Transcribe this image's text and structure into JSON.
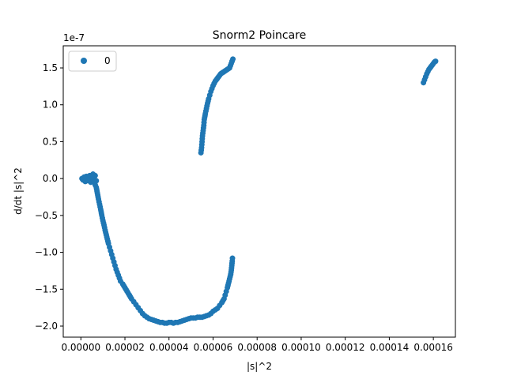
{
  "chart_data": {
    "type": "scatter",
    "title": "Snorm2 Poincare",
    "xlabel": "|s|^2",
    "ylabel": "d/dt |s|^2",
    "y_offset_text": "1e-7",
    "y_scale": 1e-07,
    "xlim": [
      -8e-06,
      0.00017
    ],
    "ylim": [
      -2.15,
      1.8
    ],
    "x_ticks": [
      0.0,
      2e-05,
      4e-05,
      6e-05,
      8e-05,
      0.0001,
      0.00012,
      0.00014,
      0.00016
    ],
    "x_tick_labels": [
      "0.00000",
      "0.00002",
      "0.00004",
      "0.00006",
      "0.00008",
      "0.00010",
      "0.00012",
      "0.00014",
      "0.00016"
    ],
    "y_ticks": [
      -2.0,
      -1.5,
      -1.0,
      -0.5,
      0.0,
      0.5,
      1.0,
      1.5
    ],
    "y_tick_labels": [
      "−2.0",
      "−1.5",
      "−1.0",
      "−0.5",
      "0.0",
      "0.5",
      "1.0",
      "1.5"
    ],
    "grid": false,
    "legend": {
      "placement": "top-left",
      "entries": [
        "0"
      ]
    },
    "color": "#1f77b4",
    "series": [
      {
        "name": "0",
        "cluster_origin": [
          [
            5e-07,
            0.0
          ],
          [
            1e-06,
            -0.02
          ],
          [
            1.5e-06,
            0.02
          ],
          [
            2e-06,
            -0.04
          ],
          [
            2.5e-06,
            0.03
          ],
          [
            3e-06,
            0.0
          ],
          [
            3.5e-06,
            -0.03
          ],
          [
            4e-06,
            0.04
          ],
          [
            4.5e-06,
            0.01
          ],
          [
            5e-06,
            -0.02
          ],
          [
            5.5e-06,
            0.03
          ],
          [
            6e-06,
            0.0
          ],
          [
            6.5e-06,
            0.04
          ],
          [
            7e-06,
            -0.03
          ],
          [
            4.5e-06,
            -0.05
          ],
          [
            5.5e-06,
            0.06
          ],
          [
            5e-06,
            0.02
          ],
          [
            6e-06,
            -0.05
          ]
        ],
        "lower_arc": [
          [
            6e-06,
            -0.05
          ],
          [
            7e-06,
            -0.12
          ],
          [
            7.5e-06,
            -0.2
          ],
          [
            8e-06,
            -0.28
          ],
          [
            8.5e-06,
            -0.35
          ],
          [
            9e-06,
            -0.42
          ],
          [
            9.5e-06,
            -0.5
          ],
          [
            1e-05,
            -0.57
          ],
          [
            1.05e-05,
            -0.63
          ],
          [
            1.1e-05,
            -0.7
          ],
          [
            1.15e-05,
            -0.76
          ],
          [
            1.2e-05,
            -0.82
          ],
          [
            1.25e-05,
            -0.88
          ],
          [
            1.3e-05,
            -0.93
          ],
          [
            1.35e-05,
            -0.98
          ],
          [
            1.4e-05,
            -1.03
          ],
          [
            1.45e-05,
            -1.08
          ],
          [
            1.5e-05,
            -1.13
          ],
          [
            1.55e-05,
            -1.18
          ],
          [
            1.6e-05,
            -1.23
          ],
          [
            1.65e-05,
            -1.27
          ],
          [
            1.7e-05,
            -1.31
          ],
          [
            1.75e-05,
            -1.35
          ],
          [
            1.8e-05,
            -1.39
          ],
          [
            1.9e-05,
            -1.43
          ],
          [
            2e-05,
            -1.48
          ],
          [
            2.1e-05,
            -1.53
          ],
          [
            2.2e-05,
            -1.58
          ],
          [
            2.3e-05,
            -1.63
          ],
          [
            2.4e-05,
            -1.67
          ],
          [
            2.5e-05,
            -1.71
          ],
          [
            2.6e-05,
            -1.75
          ],
          [
            2.7e-05,
            -1.79
          ],
          [
            2.8e-05,
            -1.83
          ],
          [
            2.9e-05,
            -1.86
          ],
          [
            3e-05,
            -1.88
          ],
          [
            3.1e-05,
            -1.9
          ],
          [
            3.2e-05,
            -1.91
          ],
          [
            3.3e-05,
            -1.92
          ],
          [
            3.4e-05,
            -1.93
          ],
          [
            3.5e-05,
            -1.94
          ],
          [
            3.6e-05,
            -1.95
          ],
          [
            3.7e-05,
            -1.95
          ],
          [
            3.8e-05,
            -1.96
          ],
          [
            3.9e-05,
            -1.96
          ],
          [
            4e-05,
            -1.95
          ],
          [
            4.1e-05,
            -1.95
          ],
          [
            4.2e-05,
            -1.96
          ],
          [
            4.3e-05,
            -1.95
          ],
          [
            4.4e-05,
            -1.95
          ],
          [
            4.5e-05,
            -1.94
          ],
          [
            4.6e-05,
            -1.93
          ],
          [
            4.7e-05,
            -1.92
          ],
          [
            4.8e-05,
            -1.91
          ],
          [
            4.9e-05,
            -1.9
          ],
          [
            5e-05,
            -1.89
          ],
          [
            5.1e-05,
            -1.89
          ],
          [
            5.2e-05,
            -1.89
          ],
          [
            5.3e-05,
            -1.88
          ],
          [
            5.4e-05,
            -1.88
          ],
          [
            5.5e-05,
            -1.88
          ],
          [
            5.6e-05,
            -1.87
          ],
          [
            5.7e-05,
            -1.86
          ],
          [
            5.8e-05,
            -1.85
          ],
          [
            5.9e-05,
            -1.83
          ],
          [
            6e-05,
            -1.8
          ],
          [
            6.1e-05,
            -1.78
          ],
          [
            6.2e-05,
            -1.76
          ],
          [
            6.3e-05,
            -1.72
          ],
          [
            6.4e-05,
            -1.68
          ],
          [
            6.5e-05,
            -1.63
          ],
          [
            6.55e-05,
            -1.58
          ],
          [
            6.6e-05,
            -1.53
          ],
          [
            6.65e-05,
            -1.48
          ],
          [
            6.7e-05,
            -1.42
          ],
          [
            6.75e-05,
            -1.36
          ],
          [
            6.8e-05,
            -1.3
          ],
          [
            6.83e-05,
            -1.24
          ],
          [
            6.85e-05,
            -1.18
          ],
          [
            6.87e-05,
            -1.12
          ],
          [
            6.88e-05,
            -1.08
          ]
        ],
        "middle_arc": [
          [
            5.45e-05,
            0.35
          ],
          [
            5.48e-05,
            0.42
          ],
          [
            5.5e-05,
            0.5
          ],
          [
            5.52e-05,
            0.58
          ],
          [
            5.55e-05,
            0.65
          ],
          [
            5.58e-05,
            0.72
          ],
          [
            5.6e-05,
            0.8
          ],
          [
            5.65e-05,
            0.88
          ],
          [
            5.7e-05,
            0.95
          ],
          [
            5.75e-05,
            1.02
          ],
          [
            5.8e-05,
            1.08
          ],
          [
            5.85e-05,
            1.13
          ],
          [
            5.9e-05,
            1.18
          ],
          [
            5.95e-05,
            1.22
          ],
          [
            6e-05,
            1.26
          ],
          [
            6.05e-05,
            1.29
          ],
          [
            6.1e-05,
            1.32
          ],
          [
            6.15e-05,
            1.34
          ],
          [
            6.2e-05,
            1.36
          ],
          [
            6.25e-05,
            1.38
          ],
          [
            6.3e-05,
            1.4
          ],
          [
            6.35e-05,
            1.42
          ],
          [
            6.4e-05,
            1.43
          ],
          [
            6.45e-05,
            1.44
          ],
          [
            6.5e-05,
            1.45
          ],
          [
            6.55e-05,
            1.46
          ],
          [
            6.6e-05,
            1.47
          ],
          [
            6.65e-05,
            1.48
          ],
          [
            6.7e-05,
            1.49
          ],
          [
            6.75e-05,
            1.5
          ],
          [
            6.9e-05,
            1.62
          ]
        ],
        "right_arc": [
          [
            0.0001555,
            1.3
          ],
          [
            0.000156,
            1.34
          ],
          [
            0.0001565,
            1.38
          ],
          [
            0.000157,
            1.42
          ],
          [
            0.0001575,
            1.45
          ],
          [
            0.000158,
            1.48
          ],
          [
            0.0001585,
            1.5
          ],
          [
            0.000159,
            1.52
          ],
          [
            0.0001595,
            1.54
          ],
          [
            0.00016,
            1.56
          ],
          [
            0.0001605,
            1.58
          ],
          [
            0.000161,
            1.59
          ]
        ]
      }
    ]
  }
}
